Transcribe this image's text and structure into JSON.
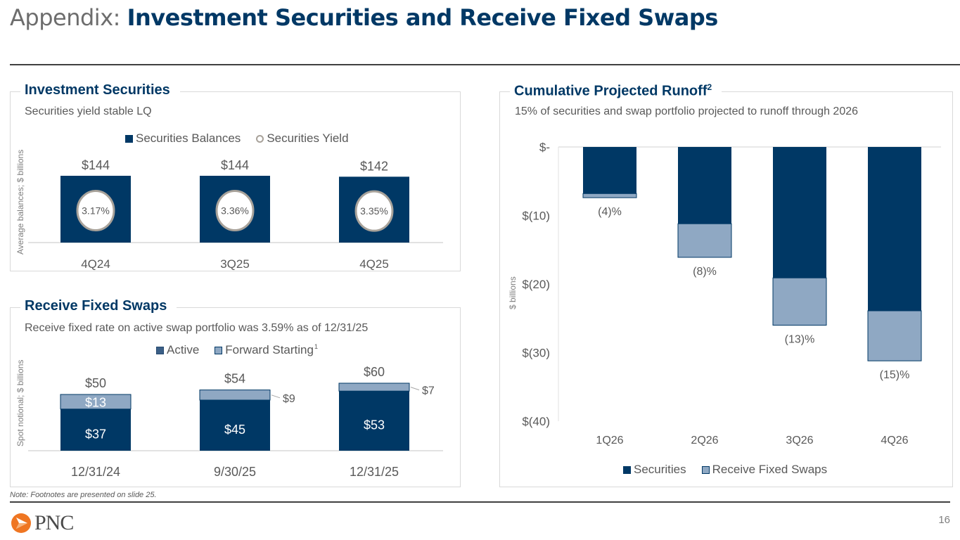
{
  "header": {
    "title_prefix": "Appendix: ",
    "title_main": "Investment Securities and Receive Fixed Swaps"
  },
  "colors": {
    "brand_navy": "#003865",
    "swap_light": "#8fa8c3",
    "active_legend": "#3b5f86",
    "yield_ring": "#a8a29a",
    "logo_orange": "#ef7622"
  },
  "investment_securities": {
    "title": "Investment Securities",
    "subtitle": "Securities yield stable LQ",
    "ylabel": "Average balances; $ billions",
    "legend": [
      "Securities Balances",
      "Securities Yield"
    ]
  },
  "receive_fixed_swaps": {
    "title": "Receive Fixed Swaps",
    "subtitle": "Receive fixed rate on active swap portfolio was 3.59% as of 12/31/25",
    "ylabel": "Spot notional; $ billions",
    "legend": [
      "Active",
      "Forward Starting"
    ],
    "legend_footnote": "1"
  },
  "runoff": {
    "title": "Cumulative Projected Runoff",
    "title_footnote": "2",
    "subtitle": "15% of securities and swap portfolio projected to runoff through 2026",
    "ylabel": "$ billions",
    "legend": [
      "Securities",
      "Receive Fixed Swaps"
    ]
  },
  "chart_data": [
    {
      "type": "bar",
      "title": "Investment Securities",
      "categories": [
        "4Q24",
        "3Q25",
        "4Q25"
      ],
      "series": [
        {
          "name": "Securities Balances",
          "values": [
            144,
            144,
            142
          ],
          "labels": [
            "$144",
            "$144",
            "$142"
          ]
        },
        {
          "name": "Securities Yield",
          "values": [
            3.17,
            3.36,
            3.35
          ],
          "labels": [
            "3.17%",
            "3.36%",
            "3.35%"
          ]
        }
      ],
      "ylabel": "Average balances; $ billions",
      "legend": "top-center"
    },
    {
      "type": "bar",
      "stacked": true,
      "title": "Receive Fixed Swaps",
      "categories": [
        "12/31/24",
        "9/30/25",
        "12/31/25"
      ],
      "series": [
        {
          "name": "Active",
          "values": [
            37,
            45,
            53
          ],
          "labels": [
            "$37",
            "$45",
            "$53"
          ]
        },
        {
          "name": "Forward Starting",
          "values": [
            13,
            9,
            7
          ],
          "labels": [
            "$13",
            "$9",
            "$7"
          ]
        }
      ],
      "totals": [
        50,
        54,
        60
      ],
      "total_labels": [
        "$50",
        "$54",
        "$60"
      ],
      "ylabel": "Spot notional; $ billions",
      "legend": "top-center"
    },
    {
      "type": "bar",
      "stacked": true,
      "title": "Cumulative Projected Runoff",
      "categories": [
        "1Q26",
        "2Q26",
        "3Q26",
        "4Q26"
      ],
      "series": [
        {
          "name": "Securities",
          "values": [
            -6.8,
            -11.2,
            -19.1,
            -23.9
          ]
        },
        {
          "name": "Receive Fixed Swaps",
          "values": [
            -0.6,
            -4.9,
            -6.9,
            -7.3
          ]
        }
      ],
      "percent_labels": [
        "(4)%",
        "(8)%",
        "(13)%",
        "(15)%"
      ],
      "yticks": [
        0,
        -10,
        -20,
        -30,
        -40
      ],
      "ytick_labels": [
        "$-",
        "$(10)",
        "$(20)",
        "$(30)",
        "$(40)"
      ],
      "ylim": [
        -40,
        0
      ],
      "ylabel": "$ billions",
      "grid": false,
      "legend": "bottom-center"
    }
  ],
  "footer": {
    "note": "Note: Footnotes are presented on slide 25.",
    "logo_text": "PNC",
    "page_number": "16"
  }
}
